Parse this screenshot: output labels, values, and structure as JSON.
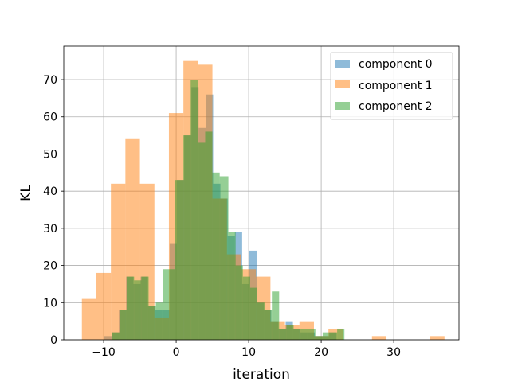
{
  "chart_data": {
    "type": "bar",
    "histogram": true,
    "xlabel": "iteration",
    "ylabel": "KL",
    "xlim": [
      -15.5,
      39
    ],
    "ylim": [
      0,
      79
    ],
    "xticks": [
      -10,
      0,
      10,
      20,
      30
    ],
    "yticks": [
      0,
      10,
      20,
      30,
      40,
      50,
      60,
      70
    ],
    "grid": true,
    "legend_position": "top-right",
    "series": [
      {
        "name": "component 0",
        "color": "#1f77b4",
        "bins": [
          [
            -9.9,
            -8.9,
            1
          ],
          [
            -8.9,
            -7.9,
            2
          ],
          [
            -7.9,
            -6.9,
            8
          ],
          [
            -6.9,
            -5.9,
            17
          ],
          [
            -5.9,
            -4.9,
            15
          ],
          [
            -4.9,
            -3.9,
            17
          ],
          [
            -3.9,
            -2.9,
            9
          ],
          [
            -2.9,
            -1.9,
            8
          ],
          [
            -1.9,
            -0.9,
            8
          ],
          [
            -0.9,
            0.1,
            26
          ],
          [
            0.1,
            1.1,
            43
          ],
          [
            1.1,
            2.1,
            55
          ],
          [
            2.1,
            3.1,
            68
          ],
          [
            3.1,
            4.1,
            57
          ],
          [
            4.1,
            5.1,
            66
          ],
          [
            5.1,
            6.1,
            42
          ],
          [
            6.1,
            7.1,
            38
          ],
          [
            7.1,
            8.1,
            28
          ],
          [
            8.1,
            9.1,
            29
          ],
          [
            9.1,
            10.1,
            15
          ],
          [
            10.1,
            11.1,
            24
          ],
          [
            11.1,
            12.1,
            10
          ],
          [
            12.1,
            13.1,
            8
          ],
          [
            13.1,
            14.1,
            5
          ],
          [
            14.1,
            15.1,
            3
          ],
          [
            15.1,
            16.1,
            5
          ],
          [
            16.1,
            17.1,
            3
          ],
          [
            17.1,
            18.1,
            2
          ],
          [
            18.1,
            19.1,
            2
          ],
          [
            19.1,
            20.1,
            1
          ],
          [
            20.1,
            21.1,
            1
          ],
          [
            21.1,
            22.1,
            2
          ]
        ]
      },
      {
        "name": "component 1",
        "color": "#ff7f0e",
        "bins": [
          [
            -13,
            -11,
            11
          ],
          [
            -11,
            -9,
            18
          ],
          [
            -9,
            -7,
            42
          ],
          [
            -7,
            -5,
            54
          ],
          [
            -5,
            -3,
            42
          ],
          [
            -3,
            -1,
            6
          ],
          [
            -1,
            1,
            61
          ],
          [
            1,
            3,
            75
          ],
          [
            3,
            5,
            74
          ],
          [
            5,
            7,
            38
          ],
          [
            7,
            9,
            23
          ],
          [
            9,
            11,
            19
          ],
          [
            11,
            13,
            17
          ],
          [
            13,
            15,
            5
          ],
          [
            15,
            17,
            4
          ],
          [
            17,
            19,
            5
          ],
          [
            19,
            21,
            1
          ],
          [
            21,
            23,
            3
          ],
          [
            23,
            25,
            0
          ],
          [
            25,
            27,
            0
          ],
          [
            27,
            29,
            1
          ],
          [
            29,
            31,
            0
          ],
          [
            31,
            33,
            0
          ],
          [
            33,
            35,
            0
          ],
          [
            35,
            37,
            1
          ]
        ]
      },
      {
        "name": "component 2",
        "color": "#2ca02c",
        "bins": [
          [
            -9.8,
            -8.8,
            0
          ],
          [
            -8.8,
            -7.8,
            2
          ],
          [
            -7.8,
            -6.8,
            8
          ],
          [
            -6.8,
            -5.8,
            17
          ],
          [
            -5.8,
            -4.8,
            16
          ],
          [
            -4.8,
            -3.8,
            17
          ],
          [
            -3.8,
            -2.8,
            9
          ],
          [
            -2.8,
            -1.8,
            10
          ],
          [
            -1.8,
            -0.2,
            19
          ],
          [
            -0.2,
            1.0,
            43
          ],
          [
            1.0,
            2.0,
            55
          ],
          [
            2.0,
            3.0,
            70
          ],
          [
            3.0,
            4.0,
            53
          ],
          [
            4.0,
            5.0,
            56
          ],
          [
            5.0,
            6.0,
            45
          ],
          [
            6.0,
            7.2,
            44
          ],
          [
            7.2,
            8.2,
            29
          ],
          [
            8.2,
            9.2,
            20
          ],
          [
            9.2,
            10.2,
            17
          ],
          [
            10.2,
            11.2,
            14
          ],
          [
            11.2,
            12.2,
            10
          ],
          [
            12.2,
            13.2,
            8
          ],
          [
            13.2,
            14.2,
            13
          ],
          [
            14.2,
            15.2,
            3
          ],
          [
            15.2,
            16.2,
            4
          ],
          [
            16.2,
            17.2,
            3
          ],
          [
            17.2,
            18.2,
            3
          ],
          [
            18.2,
            19.2,
            3
          ],
          [
            19.2,
            20.2,
            1
          ],
          [
            20.2,
            21.2,
            2
          ],
          [
            21.2,
            22.2,
            2
          ],
          [
            22.2,
            23.2,
            3
          ]
        ]
      }
    ]
  }
}
